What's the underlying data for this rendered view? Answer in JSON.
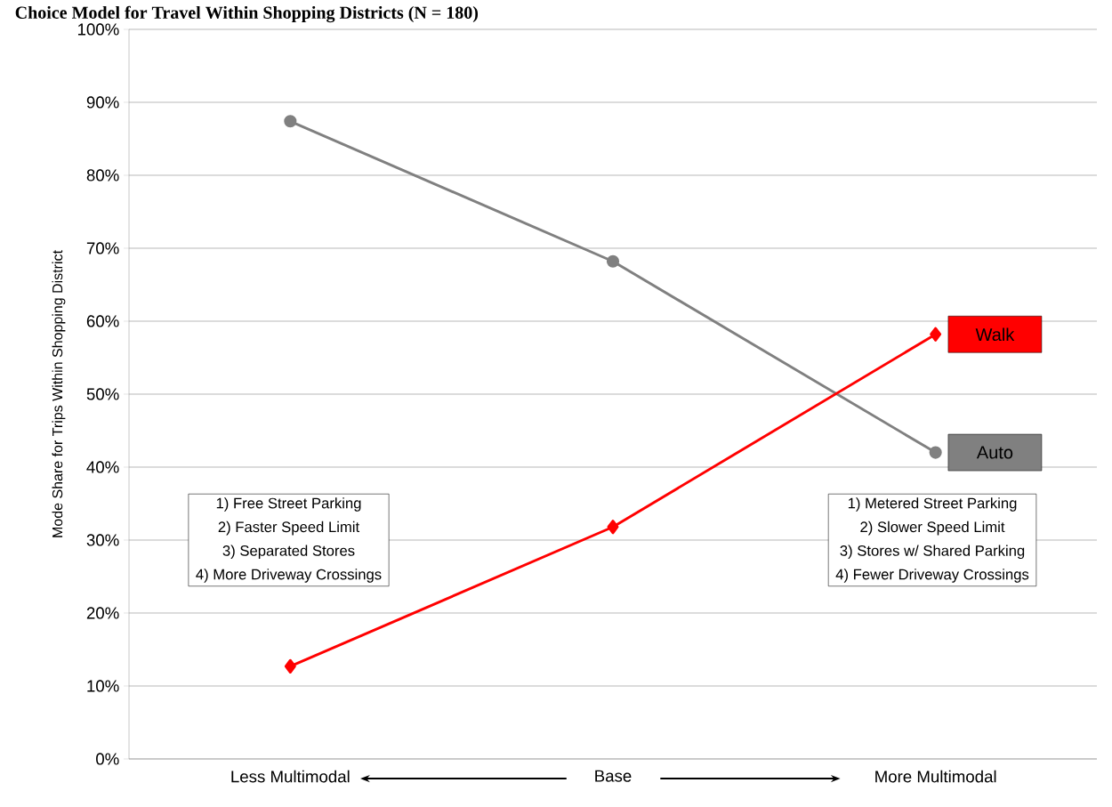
{
  "chart_data": {
    "type": "line",
    "title": "Choice Model for Travel Within Shopping Districts (N = 180)",
    "ylabel": "Mode Share for Trips Within Shopping District",
    "categories": [
      "Less Multimodal",
      "Base",
      "More Multimodal"
    ],
    "series": [
      {
        "name": "Auto",
        "color": "#808080",
        "marker": "circle",
        "values": [
          87.4,
          68.2,
          42.0
        ]
      },
      {
        "name": "Walk",
        "color": "#ff0000",
        "marker": "diamond",
        "values": [
          12.7,
          31.8,
          58.2
        ]
      }
    ],
    "ylim": [
      0,
      100
    ],
    "yticks": [
      {
        "value": 0,
        "label": "0%"
      },
      {
        "value": 10,
        "label": "10%"
      },
      {
        "value": 20,
        "label": "20%"
      },
      {
        "value": 30,
        "label": "30%"
      },
      {
        "value": 40,
        "label": "40%"
      },
      {
        "value": 50,
        "label": "50%"
      },
      {
        "value": 60,
        "label": "60%"
      },
      {
        "value": 70,
        "label": "70%"
      },
      {
        "value": 80,
        "label": "80%"
      },
      {
        "value": 90,
        "label": "90%"
      },
      {
        "value": 100,
        "label": "100%"
      }
    ],
    "grid": "y",
    "legend": false,
    "annotations": [
      "1) Free Street Parking",
      "2) Faster Speed Limit",
      "3) Separated Stores",
      "4) More Driveway Crossings",
      "1) Metered Street Parking",
      "2) Slower Speed Limit",
      "3) Stores w/ Shared Parking",
      "4) Fewer Driveway Crossings"
    ]
  }
}
